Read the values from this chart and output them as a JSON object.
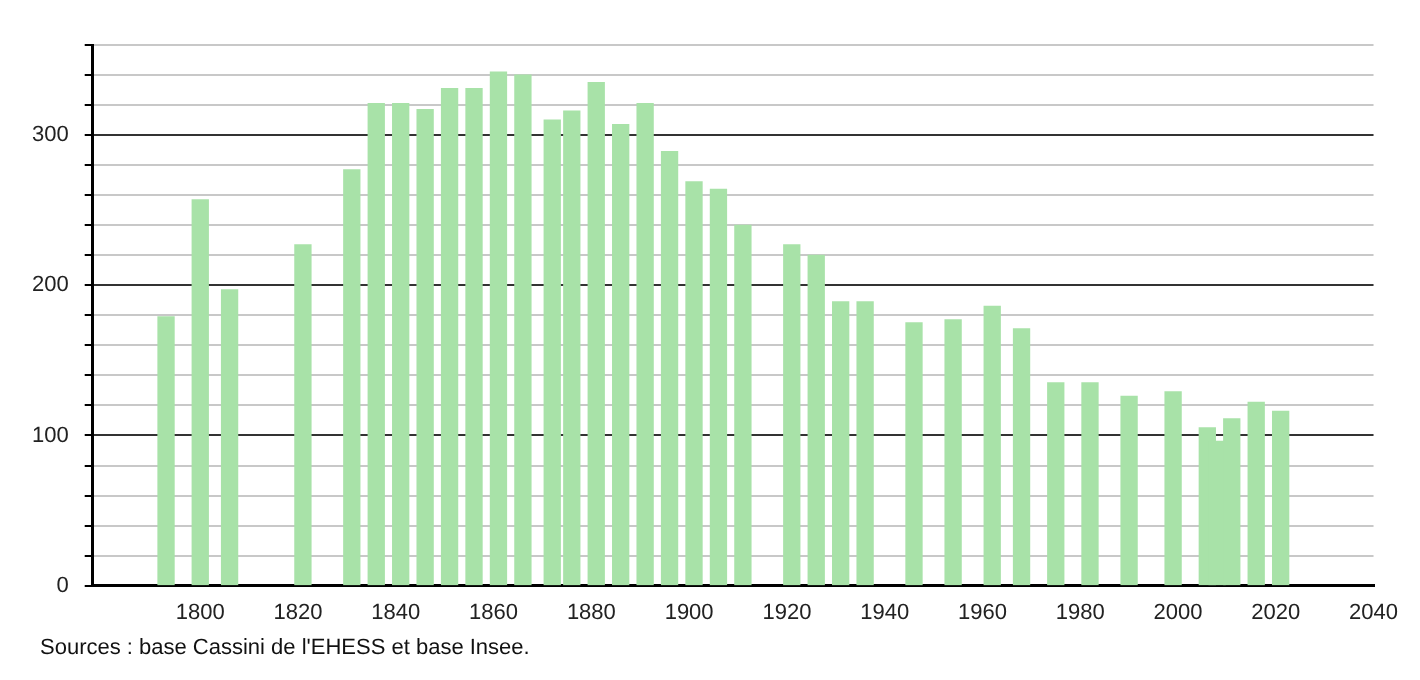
{
  "chart_data": {
    "type": "bar",
    "x": [
      1793,
      1800,
      1806,
      1821,
      1831,
      1836,
      1841,
      1846,
      1851,
      1856,
      1861,
      1866,
      1872,
      1876,
      1881,
      1886,
      1891,
      1896,
      1901,
      1906,
      1911,
      1921,
      1926,
      1931,
      1936,
      1946,
      1954,
      1962,
      1968,
      1975,
      1982,
      1990,
      1999,
      2006,
      2008,
      2011,
      2016,
      2021
    ],
    "values": [
      179,
      257,
      197,
      227,
      277,
      321,
      321,
      317,
      331,
      331,
      342,
      340,
      310,
      316,
      335,
      307,
      321,
      289,
      269,
      264,
      240,
      227,
      220,
      189,
      189,
      175,
      177,
      186,
      171,
      135,
      135,
      126,
      129,
      105,
      96,
      111,
      122,
      116
    ],
    "color": "#a8e2a8",
    "xlim": [
      1778,
      2040
    ],
    "xticks": [
      1800,
      1820,
      1840,
      1860,
      1880,
      1900,
      1920,
      1940,
      1960,
      1980,
      2000,
      2020,
      2040
    ],
    "ylim": [
      0,
      360
    ],
    "yticks": [
      0,
      {
        "value": 20,
        "label": null
      },
      {
        "value": 40,
        "label": null
      },
      {
        "value": 60,
        "label": null
      },
      {
        "value": 80,
        "label": null
      },
      100,
      {
        "value": 120,
        "label": null
      },
      {
        "value": 140,
        "label": null
      },
      {
        "value": 160,
        "label": null
      },
      {
        "value": 180,
        "label": null
      },
      200,
      {
        "value": 220,
        "label": null
      },
      {
        "value": 240,
        "label": null
      },
      {
        "value": 260,
        "label": null
      },
      {
        "value": 280,
        "label": null
      },
      300,
      {
        "value": 320,
        "label": null
      },
      {
        "value": 340,
        "label": null
      },
      {
        "value": 360,
        "label": null
      }
    ],
    "grid": "y",
    "legend": false,
    "annotations": [
      "Sources : base Cassini de l'EHESS et base Insee."
    ]
  }
}
